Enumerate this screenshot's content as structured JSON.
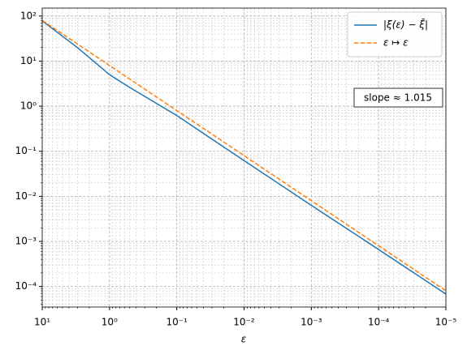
{
  "chart_data": {
    "type": "line",
    "x_label": "ε",
    "x": [
      10,
      3,
      1,
      0.5,
      0.1,
      0.01,
      0.001,
      0.0001,
      1e-05
    ],
    "series": [
      {
        "name": "|ξ(ε) − ξ̄|",
        "color": "#1f77b4",
        "dash": "solid",
        "values": [
          78,
          20,
          5,
          2.6,
          0.62,
          0.062,
          0.0063,
          0.00066,
          6.8e-05
        ]
      },
      {
        "name": "ε ↦ ε",
        "color": "#ff7f0e",
        "dash": "dashed",
        "values": [
          80,
          24,
          8,
          4,
          0.8,
          0.08,
          0.008,
          0.0008,
          8e-05
        ]
      }
    ],
    "annotation": "slope ≈ 1.015",
    "xscale": "log",
    "yscale": "log",
    "xlim": [
      10,
      1e-05
    ],
    "ylim": [
      3.5e-05,
      150
    ],
    "xticks": [
      {
        "value": 10,
        "label": "10¹"
      },
      {
        "value": 1,
        "label": "10⁰"
      },
      {
        "value": 0.1,
        "label": "10⁻¹"
      },
      {
        "value": 0.01,
        "label": "10⁻²"
      },
      {
        "value": 0.001,
        "label": "10⁻³"
      },
      {
        "value": 0.0001,
        "label": "10⁻⁴"
      },
      {
        "value": 1e-05,
        "label": "10⁻⁵"
      }
    ],
    "yticks": [
      {
        "value": 0.0001,
        "label": "10⁻⁴"
      },
      {
        "value": 0.001,
        "label": "10⁻³"
      },
      {
        "value": 0.01,
        "label": "10⁻²"
      },
      {
        "value": 0.1,
        "label": "10⁻¹"
      },
      {
        "value": 1,
        "label": "10⁰"
      },
      {
        "value": 10,
        "label": "10¹"
      },
      {
        "value": 100,
        "label": "10²"
      }
    ],
    "grid": true,
    "minor_grid": true,
    "legend": "upper right"
  }
}
